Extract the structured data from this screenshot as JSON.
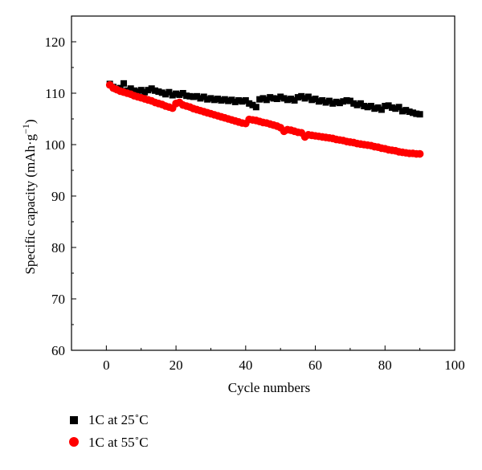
{
  "chart_data": {
    "type": "scatter",
    "title": "",
    "xlabel": "Cycle numbers",
    "ylabel": "Specific capacity (mAh·g",
    "ylabel_sup": "−1",
    "ylabel_close": ")",
    "xlim": [
      -10,
      100
    ],
    "ylim": [
      60,
      125
    ],
    "xticks": [
      0,
      20,
      40,
      60,
      80,
      100
    ],
    "yticks": [
      60,
      70,
      80,
      90,
      100,
      110,
      120
    ],
    "xtick_labels": [
      "0",
      "20",
      "40",
      "60",
      "80",
      "100"
    ],
    "ytick_labels": [
      "60",
      "70",
      "80",
      "90",
      "100",
      "110",
      "120"
    ],
    "grid": false,
    "legend_position": "bottom-left (below plot)",
    "series": [
      {
        "name": "1C at 25˚C",
        "marker": "square",
        "color": "#000000",
        "x": [
          1,
          2,
          3,
          4,
          5,
          6,
          7,
          8,
          9,
          10,
          11,
          12,
          13,
          14,
          15,
          16,
          17,
          18,
          19,
          20,
          21,
          22,
          23,
          24,
          25,
          26,
          27,
          28,
          29,
          30,
          31,
          32,
          33,
          34,
          35,
          36,
          37,
          38,
          39,
          40,
          41,
          42,
          43,
          44,
          45,
          46,
          47,
          48,
          49,
          50,
          51,
          52,
          53,
          54,
          55,
          56,
          57,
          58,
          59,
          60,
          61,
          62,
          63,
          64,
          65,
          66,
          67,
          68,
          69,
          70,
          71,
          72,
          73,
          74,
          75,
          76,
          77,
          78,
          79,
          80,
          81,
          82,
          83,
          84,
          85,
          86,
          87,
          88,
          89,
          90
        ],
        "y": [
          111.8,
          111.2,
          110.8,
          111.0,
          111.9,
          110.5,
          110.9,
          110.5,
          110.3,
          110.6,
          110.2,
          110.6,
          110.9,
          110.5,
          110.3,
          110.1,
          109.8,
          110.2,
          109.6,
          109.9,
          109.7,
          110.0,
          109.5,
          109.4,
          109.3,
          109.4,
          109.0,
          109.3,
          108.8,
          109.0,
          108.7,
          108.9,
          108.6,
          108.8,
          108.5,
          108.7,
          108.3,
          108.6,
          108.4,
          108.6,
          108.0,
          107.7,
          107.3,
          108.8,
          109.0,
          108.7,
          109.2,
          109.0,
          108.9,
          109.3,
          109.0,
          108.7,
          108.9,
          108.6,
          109.2,
          109.4,
          109.0,
          109.3,
          108.7,
          108.9,
          108.4,
          108.6,
          108.2,
          108.5,
          108.0,
          108.3,
          108.1,
          108.4,
          108.6,
          108.5,
          108.0,
          107.7,
          108.0,
          107.5,
          107.3,
          107.5,
          107.0,
          107.2,
          106.8,
          107.5,
          107.6,
          107.2,
          107.0,
          107.3,
          106.5,
          106.7,
          106.4,
          106.2,
          106.0,
          105.9
        ]
      },
      {
        "name": "1C at 55˚C",
        "marker": "circle",
        "color": "#ff0000",
        "x": [
          1,
          2,
          3,
          4,
          5,
          6,
          7,
          8,
          9,
          10,
          11,
          12,
          13,
          14,
          15,
          16,
          17,
          18,
          19,
          20,
          21,
          22,
          23,
          24,
          25,
          26,
          27,
          28,
          29,
          30,
          31,
          32,
          33,
          34,
          35,
          36,
          37,
          38,
          39,
          40,
          41,
          42,
          43,
          44,
          45,
          46,
          47,
          48,
          49,
          50,
          51,
          52,
          53,
          54,
          55,
          56,
          57,
          58,
          59,
          60,
          61,
          62,
          63,
          64,
          65,
          66,
          67,
          68,
          69,
          70,
          71,
          72,
          73,
          74,
          75,
          76,
          77,
          78,
          79,
          80,
          81,
          82,
          83,
          84,
          85,
          86,
          87,
          88,
          89,
          90
        ],
        "y": [
          111.6,
          111.0,
          110.7,
          110.4,
          110.2,
          110.0,
          109.8,
          109.5,
          109.3,
          109.1,
          108.9,
          108.7,
          108.5,
          108.2,
          108.0,
          107.8,
          107.5,
          107.3,
          107.1,
          108.0,
          108.2,
          107.7,
          107.5,
          107.3,
          107.0,
          106.8,
          106.6,
          106.4,
          106.2,
          106.0,
          105.8,
          105.6,
          105.4,
          105.2,
          105.0,
          104.8,
          104.6,
          104.4,
          104.2,
          104.1,
          104.9,
          104.8,
          104.7,
          104.5,
          104.3,
          104.2,
          104.0,
          103.8,
          103.6,
          103.3,
          102.6,
          102.9,
          102.8,
          102.6,
          102.4,
          102.3,
          101.5,
          101.9,
          101.8,
          101.7,
          101.6,
          101.5,
          101.4,
          101.3,
          101.2,
          101.0,
          100.9,
          100.8,
          100.6,
          100.5,
          100.4,
          100.2,
          100.1,
          100.0,
          99.9,
          99.8,
          99.6,
          99.5,
          99.3,
          99.2,
          99.0,
          98.9,
          98.8,
          98.6,
          98.5,
          98.4,
          98.3,
          98.3,
          98.2,
          98.2
        ]
      }
    ]
  }
}
